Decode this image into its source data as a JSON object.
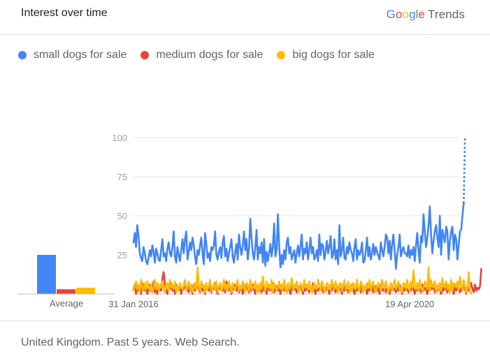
{
  "header": {
    "title": "Interest over time",
    "brand_name": "Google",
    "brand_product": "Trends"
  },
  "footer": {
    "text": "United Kingdom. Past 5 years. Web Search."
  },
  "colors": {
    "small": "#4285F4",
    "medium": "#EA4335",
    "big": "#FBBC05"
  },
  "chart_data": {
    "type": "line",
    "title": "Interest over time",
    "ylim": [
      0,
      100
    ],
    "yticks": [
      25,
      50,
      75,
      100
    ],
    "x_labels": [
      "31 Jan 2016",
      "19 Apr 2020"
    ],
    "x_label_positions": [
      0,
      220
    ],
    "num_points": 261,
    "average_label": "Average",
    "averages": [
      {
        "name": "small dogs for sale",
        "value": 25,
        "color": "#4285F4"
      },
      {
        "name": "medium dogs for sale",
        "value": 3,
        "color": "#EA4335"
      },
      {
        "name": "big dogs for sale",
        "value": 4,
        "color": "#FBBC05"
      }
    ],
    "series": [
      {
        "name": "small dogs for sale",
        "color": "#4285F4",
        "values": [
          33,
          39,
          30,
          44,
          37,
          26,
          23,
          21,
          30,
          26,
          21,
          19,
          23,
          28,
          24,
          31,
          27,
          20,
          29,
          26,
          22,
          21,
          28,
          35,
          24,
          26,
          21,
          29,
          33,
          26,
          24,
          30,
          40,
          24,
          20,
          30,
          25,
          21,
          28,
          35,
          26,
          35,
          40,
          22,
          27,
          33,
          28,
          36,
          31,
          24,
          19,
          28,
          25,
          31,
          36,
          26,
          19,
          39,
          32,
          23,
          26,
          21,
          30,
          28,
          31,
          40,
          25,
          22,
          27,
          30,
          23,
          33,
          37,
          24,
          29,
          21,
          26,
          30,
          35,
          24,
          20,
          27,
          32,
          22,
          38,
          30,
          25,
          31,
          40,
          28,
          35,
          22,
          29,
          48,
          36,
          26,
          22,
          30,
          41,
          22,
          30,
          26,
          33,
          20,
          35,
          18,
          27,
          21,
          26,
          32,
          24,
          30,
          45,
          24,
          28,
          51,
          31,
          17,
          25,
          19,
          28,
          22,
          33,
          36,
          26,
          30,
          22,
          25,
          28,
          20,
          26,
          31,
          24,
          30,
          38,
          22,
          29,
          26,
          33,
          22,
          28,
          36,
          26,
          30,
          22,
          24,
          28,
          21,
          38,
          25,
          32,
          31,
          22,
          27,
          34,
          26,
          30,
          37,
          23,
          25,
          35,
          22,
          28,
          19,
          44,
          24,
          28,
          36,
          23,
          22,
          30,
          26,
          33,
          28,
          26,
          21,
          30,
          35,
          22,
          28,
          25,
          27,
          33,
          20,
          21,
          28,
          36,
          24,
          30,
          22,
          26,
          32,
          25,
          30,
          27,
          24,
          22,
          33,
          28,
          24,
          30,
          38,
          36,
          26,
          34,
          22,
          32,
          38,
          28,
          16,
          25,
          30,
          38,
          24,
          28,
          30,
          26,
          26,
          24,
          31,
          23,
          28,
          25,
          30,
          21,
          31,
          39,
          28,
          20,
          37,
          33,
          51,
          40,
          30,
          36,
          44,
          56,
          38,
          26,
          34,
          40,
          44,
          36,
          30,
          50,
          25,
          41,
          37,
          33,
          43,
          40,
          22,
          34,
          40,
          43,
          28,
          38,
          35,
          22,
          31,
          40,
          41,
          50,
          58,
          100
        ],
        "dashed_last": true
      },
      {
        "name": "medium dogs for sale",
        "color": "#EA4335",
        "values": [
          3,
          6,
          0,
          5,
          2,
          4,
          0,
          7,
          3,
          2,
          5,
          0,
          4,
          6,
          2,
          3,
          8,
          1,
          4,
          0,
          5,
          3,
          2,
          10,
          14,
          6,
          3,
          0,
          5,
          3,
          7,
          2,
          4,
          0,
          6,
          3,
          2,
          5,
          0,
          4,
          3,
          8,
          2,
          5,
          1,
          4,
          3,
          0,
          6,
          2,
          4,
          5,
          3,
          1,
          7,
          2,
          4,
          0,
          5,
          3,
          2,
          6,
          1,
          4,
          3,
          7,
          2,
          0,
          5,
          3,
          4,
          2,
          6,
          1,
          8,
          3,
          2,
          5,
          0,
          4,
          3,
          6,
          2,
          5,
          1,
          3,
          4,
          0,
          6,
          2,
          5,
          3,
          1,
          4,
          2,
          6,
          3,
          0,
          5,
          2,
          4,
          3,
          1,
          6,
          2,
          4,
          0,
          5,
          3,
          2,
          4,
          7,
          1,
          3,
          5,
          2,
          4,
          0,
          6,
          3,
          2,
          5,
          1,
          4,
          3,
          0,
          6,
          2,
          4,
          3,
          1,
          5,
          2,
          6,
          3,
          0,
          4,
          2,
          5,
          3,
          1,
          4,
          2,
          7,
          3,
          0,
          5,
          2,
          4,
          3,
          6,
          1,
          4,
          2,
          5,
          3,
          0,
          4,
          2,
          6,
          3,
          1,
          5,
          2,
          4,
          3,
          0,
          6,
          2,
          5,
          3,
          1,
          4,
          2,
          6,
          3,
          0,
          5,
          2,
          4,
          3,
          1,
          6,
          2,
          4,
          3,
          0,
          5,
          2,
          4,
          6,
          1,
          3,
          5,
          2,
          4,
          0,
          6,
          3,
          2,
          5,
          1,
          4,
          3,
          0,
          6,
          2,
          4,
          3,
          1,
          5,
          2,
          6,
          3,
          0,
          4,
          2,
          5,
          3,
          1,
          4,
          2,
          6,
          3,
          0,
          5,
          2,
          4,
          3,
          1,
          6,
          2,
          4,
          3,
          0,
          5,
          2,
          4,
          3,
          6,
          1,
          4,
          2,
          5,
          3,
          0,
          4,
          2,
          6,
          3,
          1,
          5,
          2,
          4,
          3,
          0,
          6,
          2,
          5,
          3,
          1,
          4,
          2,
          6,
          3,
          0,
          5,
          2,
          4,
          7,
          3,
          1,
          6,
          2,
          4,
          3,
          5,
          16
        ]
      },
      {
        "name": "big dogs for sale",
        "color": "#FBBC05",
        "values": [
          2,
          5,
          8,
          3,
          6,
          1,
          9,
          4,
          2,
          7,
          3,
          8,
          5,
          2,
          6,
          1,
          4,
          9,
          3,
          7,
          2,
          6,
          4,
          8,
          3,
          1,
          5,
          7,
          2,
          9,
          4,
          6,
          3,
          8,
          1,
          5,
          2,
          7,
          4,
          3,
          6,
          9,
          2,
          5,
          8,
          3,
          6,
          1,
          4,
          7,
          3,
          17,
          5,
          2,
          8,
          4,
          6,
          1,
          7,
          3,
          5,
          9,
          2,
          4,
          6,
          3,
          8,
          1,
          5,
          7,
          2,
          4,
          9,
          3,
          6,
          2,
          8,
          5,
          1,
          7,
          4,
          3,
          6,
          9,
          2,
          5,
          3,
          8,
          4,
          1,
          7,
          6,
          2,
          9,
          3,
          5,
          4,
          8,
          2,
          6,
          1,
          7,
          3,
          11,
          5,
          2,
          8,
          4,
          6,
          3,
          9,
          1,
          7,
          5,
          2,
          4,
          8,
          3,
          6,
          2,
          9,
          4,
          1,
          7,
          3,
          5,
          10,
          2,
          6,
          4,
          8,
          3,
          1,
          7,
          5,
          2,
          9,
          4,
          6,
          3,
          8,
          2,
          5,
          1,
          7,
          4,
          3,
          9,
          6,
          2,
          8,
          5,
          1,
          4,
          7,
          3,
          6,
          2,
          9,
          5,
          3,
          8,
          4,
          1,
          6,
          7,
          2,
          5,
          9,
          3,
          4,
          8,
          1,
          6,
          2,
          7,
          5,
          3,
          9,
          4,
          2,
          8,
          6,
          1,
          5,
          3,
          7,
          4,
          9,
          2,
          6,
          8,
          3,
          1,
          5,
          7,
          4,
          2,
          9,
          6,
          3,
          8,
          5,
          1,
          4,
          7,
          2,
          6,
          9,
          3,
          5,
          8,
          2,
          4,
          1,
          7,
          6,
          3,
          9,
          5,
          2,
          8,
          4,
          15,
          6,
          3,
          7,
          2,
          9,
          5,
          1,
          4,
          8,
          6,
          3,
          17,
          2,
          9,
          5,
          4,
          8,
          1,
          6,
          3,
          7,
          2,
          10,
          5,
          4,
          8,
          3,
          6,
          1,
          9,
          2,
          7,
          5,
          4,
          8,
          3,
          11,
          6,
          2,
          9,
          5,
          1,
          4,
          14,
          2,
          0
        ]
      }
    ]
  }
}
